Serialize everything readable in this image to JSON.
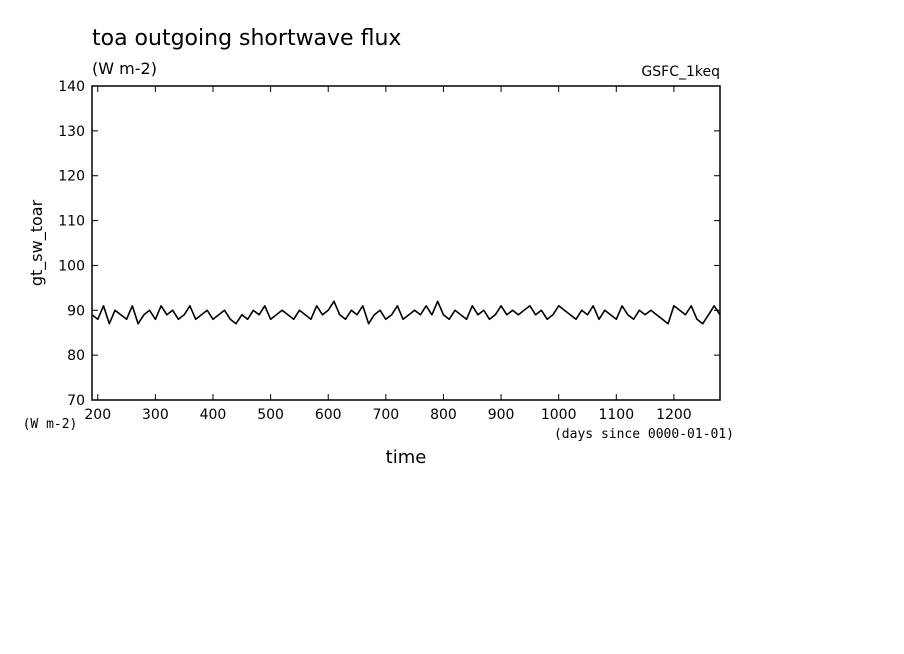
{
  "chart_data": {
    "type": "line",
    "title": "toa outgoing shortwave flux",
    "subtitle": "(W m-2)",
    "dataset_label": "GSFC_1keq",
    "ylabel": "gt_sw_toar",
    "yunits": "(W m-2)",
    "xlabel": "time",
    "xunits": "(days since 0000-01-01)",
    "xlim": [
      190,
      1280
    ],
    "ylim": [
      70,
      140
    ],
    "xticks": [
      200,
      300,
      400,
      500,
      600,
      700,
      800,
      900,
      1000,
      1100,
      1200
    ],
    "yticks": [
      70,
      80,
      90,
      100,
      110,
      120,
      130,
      140
    ],
    "grid": false,
    "legend": "none",
    "line_color": "#000000",
    "series": [
      {
        "x": [
          190,
          200,
          210,
          220,
          230,
          240,
          250,
          260,
          270,
          280,
          290,
          300,
          310,
          320,
          330,
          340,
          350,
          360,
          370,
          380,
          390,
          400,
          410,
          420,
          430,
          440,
          450,
          460,
          470,
          480,
          490,
          500,
          510,
          520,
          530,
          540,
          550,
          560,
          570,
          580,
          590,
          600,
          610,
          620,
          630,
          640,
          650,
          660,
          670,
          680,
          690,
          700,
          710,
          720,
          730,
          740,
          750,
          760,
          770,
          780,
          790,
          800,
          810,
          820,
          830,
          840,
          850,
          860,
          870,
          880,
          890,
          900,
          910,
          920,
          930,
          940,
          950,
          960,
          970,
          980,
          990,
          1000,
          1010,
          1020,
          1030,
          1040,
          1050,
          1060,
          1070,
          1080,
          1090,
          1100,
          1110,
          1120,
          1130,
          1140,
          1150,
          1160,
          1170,
          1180,
          1190,
          1200,
          1210,
          1220,
          1230,
          1240,
          1250,
          1260,
          1270,
          1280
        ],
        "y": [
          89,
          88,
          91,
          87,
          90,
          89,
          88,
          91,
          87,
          89,
          90,
          88,
          91,
          89,
          90,
          88,
          89,
          91,
          88,
          89,
          90,
          88,
          89,
          90,
          88,
          87,
          89,
          88,
          90,
          89,
          91,
          88,
          89,
          90,
          89,
          88,
          90,
          89,
          88,
          91,
          89,
          90,
          92,
          89,
          88,
          90,
          89,
          91,
          87,
          89,
          90,
          88,
          89,
          91,
          88,
          89,
          90,
          89,
          91,
          89,
          92,
          89,
          88,
          90,
          89,
          88,
          91,
          89,
          90,
          88,
          89,
          91,
          89,
          90,
          89,
          90,
          91,
          89,
          90,
          88,
          89,
          91,
          90,
          89,
          88,
          90,
          89,
          91,
          88,
          90,
          89,
          88,
          91,
          89,
          88,
          90,
          89,
          90,
          89,
          88,
          87,
          91,
          90,
          89,
          91,
          88,
          87,
          89,
          91,
          89
        ]
      }
    ]
  }
}
